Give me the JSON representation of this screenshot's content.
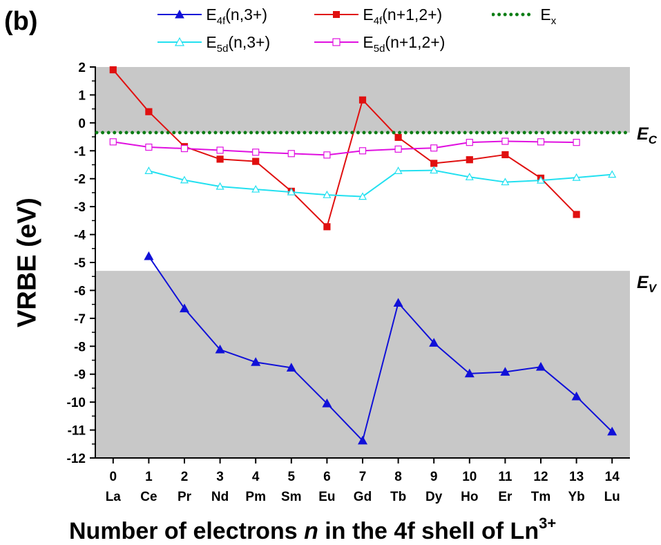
{
  "panel_label": "(b)",
  "chart_data": {
    "type": "line",
    "xlabel_parts": [
      "Number of electrons ",
      "n",
      " in the 4f shell of Ln",
      "3+"
    ],
    "ylabel": "VRBE (eV)",
    "ylim": [
      -12,
      2
    ],
    "xlim": [
      -0.5,
      14.5
    ],
    "x": [
      0,
      1,
      2,
      3,
      4,
      5,
      6,
      7,
      8,
      9,
      10,
      11,
      12,
      13,
      14
    ],
    "x_tick_labels": [
      "0",
      "1",
      "2",
      "3",
      "4",
      "5",
      "6",
      "7",
      "8",
      "9",
      "10",
      "11",
      "12",
      "13",
      "14"
    ],
    "element_labels": [
      "La",
      "Ce",
      "Pr",
      "Nd",
      "Pm",
      "Sm",
      "Eu",
      "Gd",
      "Tb",
      "Dy",
      "Ho",
      "Er",
      "Tm",
      "Yb",
      "Lu"
    ],
    "y_ticks": [
      2,
      1,
      0,
      -1,
      -2,
      -3,
      -4,
      -5,
      -6,
      -7,
      -8,
      -9,
      -10,
      -11,
      -12
    ],
    "y_tick_labels": [
      "2",
      "1",
      "0",
      "-1",
      "-2",
      "-3",
      "-4",
      "-5",
      "-6",
      "-7",
      "-8",
      "-9",
      "-10",
      "-11",
      "-12"
    ],
    "grid": false,
    "conduction_band": {
      "label": "E",
      "sub": "C",
      "value": -0.35
    },
    "valence_band": {
      "label": "E",
      "sub": "V",
      "value": -5.3
    },
    "series": [
      {
        "name": "E4f(n,3+)",
        "name_main": "E",
        "name_sub": "4f",
        "name_rest": "(n,3+)",
        "color": "#1010d8",
        "marker": "triangle-filled",
        "values": [
          null,
          -4.78,
          -6.65,
          -8.12,
          -8.57,
          -8.77,
          -10.05,
          -11.38,
          -6.45,
          -7.88,
          -8.98,
          -8.92,
          -8.74,
          -9.8,
          -11.06
        ]
      },
      {
        "name": "E4f(n+1,2+)",
        "name_main": "E",
        "name_sub": "4f",
        "name_rest": "(n+1,2+)",
        "color": "#e01010",
        "marker": "square-filled",
        "values": [
          1.9,
          0.4,
          -0.85,
          -1.3,
          -1.38,
          -2.45,
          -3.72,
          0.82,
          -0.52,
          -1.45,
          -1.32,
          -1.14,
          -1.98,
          -3.28,
          null
        ]
      },
      {
        "name": "Ex",
        "name_main": "E",
        "name_sub": "x",
        "name_rest": "",
        "color": "#0a7d14",
        "marker": "dotted-line",
        "values": [
          -0.35,
          -0.35,
          -0.35,
          -0.35,
          -0.35,
          -0.35,
          -0.35,
          -0.35,
          -0.35,
          -0.35,
          -0.35,
          -0.35,
          -0.35,
          -0.35,
          -0.35
        ]
      },
      {
        "name": "E5d(n,3+)",
        "name_main": "E",
        "name_sub": "5d",
        "name_rest": "(n,3+)",
        "color": "#22e0f0",
        "marker": "triangle-open",
        "values": [
          null,
          -1.72,
          -2.05,
          -2.28,
          -2.38,
          -2.48,
          -2.58,
          -2.64,
          -1.72,
          -1.7,
          -1.94,
          -2.12,
          -2.06,
          -1.96,
          -1.85
        ]
      },
      {
        "name": "E5d(n+1,2+)",
        "name_main": "E",
        "name_sub": "5d",
        "name_rest": "(n+1,2+)",
        "color": "#e010e0",
        "marker": "square-open",
        "values": [
          -0.68,
          -0.87,
          -0.92,
          -0.98,
          -1.05,
          -1.1,
          -1.15,
          -1.0,
          -0.94,
          -0.9,
          -0.7,
          -0.66,
          -0.68,
          -0.7,
          null
        ]
      }
    ]
  }
}
